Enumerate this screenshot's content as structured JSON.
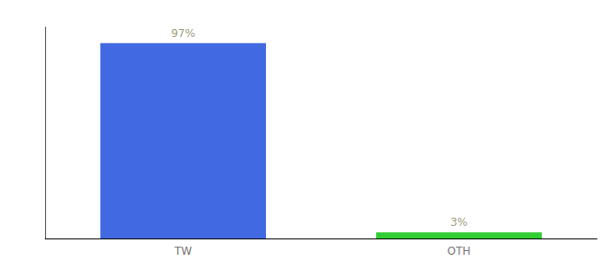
{
  "chart_data": {
    "type": "bar",
    "categories": [
      "TW",
      "OTH"
    ],
    "values": [
      97,
      3
    ],
    "colors": [
      "#4169E1",
      "#32CD32"
    ],
    "value_labels": [
      "97%",
      "3%"
    ],
    "data_labels": true,
    "ylim": [
      0,
      105
    ],
    "tick_labels": "x",
    "grid": false
  }
}
